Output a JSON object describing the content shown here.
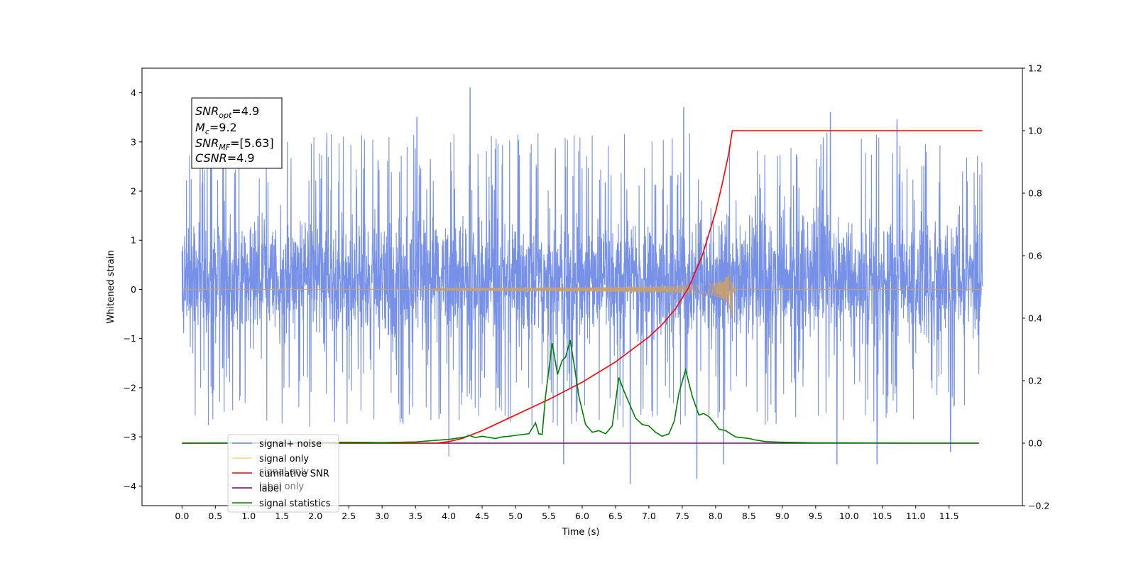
{
  "chart_data": {
    "type": "line",
    "title": "",
    "xlabel": "Time (s)",
    "ylabel": "Whitened strain",
    "ylabel_right": "",
    "xlim": [
      -0.6,
      12.6
    ],
    "ylim": [
      -4.4,
      4.5
    ],
    "ylim_right": [
      -0.2,
      1.2
    ],
    "x_ticks": [
      "0.0",
      "0.5",
      "1.0",
      "1.5",
      "2.0",
      "2.5",
      "3.0",
      "3.5",
      "4.0",
      "4.5",
      "5.0",
      "5.5",
      "6.0",
      "6.5",
      "7.0",
      "7.5",
      "8.0",
      "8.5",
      "9.0",
      "9.5",
      "10.0",
      "10.5",
      "11.0",
      "11.5"
    ],
    "y_ticks_left": [
      "−4",
      "−3",
      "−2",
      "−1",
      "0",
      "1",
      "2",
      "3",
      "4"
    ],
    "y_ticks_right": [
      "−0.2",
      "0.0",
      "0.2",
      "0.4",
      "0.6",
      "0.8",
      "1.0",
      "1.2"
    ],
    "grid": false,
    "legend_position": "lower-left",
    "legend": [
      {
        "label": "signal+ noise",
        "color": "#6f8be6"
      },
      {
        "label": "signal only",
        "color": "#ffd580"
      },
      {
        "label": "cumilative SNR",
        "color": "#ff0000"
      },
      {
        "label": "label",
        "color": "#800080"
      },
      {
        "label": "signal statistics",
        "color": "#008000"
      }
    ],
    "legend_ghost_labels": [
      "signal only",
      "label only"
    ],
    "info_box": [
      {
        "base": "SNR",
        "sub": "opt",
        "rest": "=4.9"
      },
      {
        "base": "M",
        "sub": "c",
        "rest": "=9.2"
      },
      {
        "base": "SNR",
        "sub": "MF",
        "rest": "=[5.63]"
      },
      {
        "base": "CSNR",
        "sub": "",
        "rest": "=4.9"
      }
    ],
    "series": [
      {
        "name": "signal+ noise",
        "axis": "left",
        "color": "#6f8be6",
        "x_range": [
          0.0,
          12.0
        ],
        "typical_band": [
          -1.75,
          2.2
        ],
        "peaks": [
          [
            4.32,
            4.1
          ],
          [
            7.52,
            3.7
          ],
          [
            9.72,
            3.6
          ],
          [
            10.72,
            3.45
          ],
          [
            3.52,
            3.5
          ],
          [
            5.72,
            -3.55
          ],
          [
            6.72,
            -3.95
          ],
          [
            7.72,
            -3.85
          ],
          [
            8.12,
            -3.55
          ],
          [
            4.0,
            -3.4
          ],
          [
            9.82,
            -3.55
          ],
          [
            10.42,
            -3.55
          ],
          [
            11.52,
            -3.3
          ]
        ]
      },
      {
        "name": "signal only",
        "axis": "left",
        "color": "#c8a070",
        "x_range": [
          0.0,
          12.0
        ],
        "merger_time": 8.25,
        "peak_amplitude": 0.6
      },
      {
        "name": "cumilative SNR",
        "axis": "right",
        "color": "#ff0000",
        "x": [
          3.8,
          4.0,
          4.2,
          4.5,
          5.0,
          5.5,
          6.0,
          6.5,
          7.0,
          7.2,
          7.4,
          7.6,
          7.8,
          8.0,
          8.1,
          8.2,
          8.25,
          12.0
        ],
        "y": [
          0.0,
          0.005,
          0.015,
          0.04,
          0.09,
          0.14,
          0.195,
          0.26,
          0.34,
          0.38,
          0.43,
          0.5,
          0.6,
          0.74,
          0.83,
          0.93,
          1.0,
          1.0
        ]
      },
      {
        "name": "label",
        "axis": "right",
        "color": "#800080",
        "x": [
          0.0,
          11.95
        ],
        "y": [
          0.0,
          0.0
        ]
      },
      {
        "name": "signal statistics",
        "axis": "right",
        "color": "#008000",
        "x": [
          0.0,
          2.5,
          3.0,
          3.5,
          3.75,
          4.0,
          4.25,
          4.3,
          4.4,
          4.5,
          4.7,
          4.8,
          4.9,
          5.0,
          5.2,
          5.3,
          5.35,
          5.4,
          5.45,
          5.55,
          5.63,
          5.7,
          5.75,
          5.82,
          5.88,
          5.95,
          6.05,
          6.15,
          6.25,
          6.35,
          6.45,
          6.55,
          6.62,
          6.7,
          6.8,
          6.9,
          7.0,
          7.1,
          7.2,
          7.3,
          7.38,
          7.45,
          7.55,
          7.65,
          7.75,
          7.82,
          7.9,
          8.0,
          8.05,
          8.15,
          8.3,
          8.5,
          8.6,
          8.75,
          9.0,
          9.5,
          10.0,
          11.0,
          11.95
        ],
        "y": [
          0.0,
          0.003,
          0.002,
          0.004,
          0.008,
          0.012,
          0.02,
          0.025,
          0.018,
          0.022,
          0.015,
          0.02,
          0.022,
          0.025,
          0.03,
          0.065,
          0.03,
          0.028,
          0.15,
          0.32,
          0.22,
          0.265,
          0.275,
          0.33,
          0.25,
          0.15,
          0.06,
          0.035,
          0.04,
          0.03,
          0.055,
          0.21,
          0.17,
          0.13,
          0.08,
          0.06,
          0.055,
          0.035,
          0.022,
          0.03,
          0.07,
          0.16,
          0.235,
          0.15,
          0.09,
          0.095,
          0.085,
          0.06,
          0.045,
          0.04,
          0.02,
          0.015,
          0.01,
          0.005,
          0.003,
          0.001,
          0.001,
          0.0,
          0.0
        ]
      }
    ]
  }
}
